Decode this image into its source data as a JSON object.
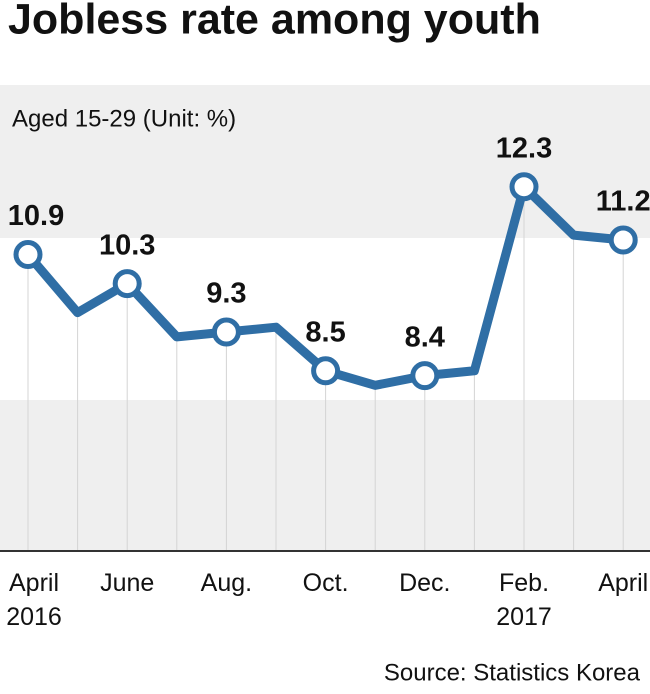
{
  "chart_data": {
    "type": "line",
    "title": "Jobless rate among youth",
    "subtitle": "Aged 15-29 (Unit: %)",
    "source": "Source: Statistics Korea",
    "categories": [
      "April 2016",
      null,
      "June",
      null,
      "Aug.",
      null,
      "Oct.",
      null,
      "Dec.",
      null,
      "Feb. 2017",
      null,
      "April"
    ],
    "values": [
      10.9,
      9.7,
      10.3,
      9.2,
      9.3,
      9.4,
      8.5,
      8.2,
      8.4,
      8.5,
      12.3,
      11.3,
      11.2
    ],
    "color": "#2f6ea5",
    "ylim": [
      4.8,
      14.4
    ]
  }
}
